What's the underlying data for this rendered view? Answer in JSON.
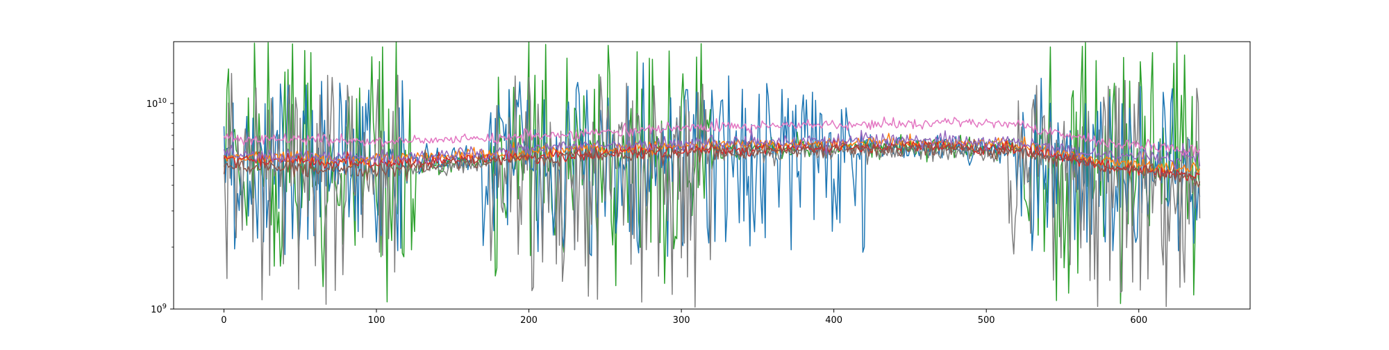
{
  "chart_data": {
    "type": "line",
    "title": "",
    "xlabel": "",
    "ylabel": "",
    "x_scale": "linear",
    "y_scale": "log",
    "xlim": [
      -33,
      673
    ],
    "ylim": [
      1000000000,
      20000000000
    ],
    "x_ticks": [
      0,
      100,
      200,
      300,
      400,
      500,
      600
    ],
    "y_ticks": [
      {
        "value": 1000000000,
        "base": "10",
        "exponent": "9"
      },
      {
        "value": 10000000000,
        "base": "10",
        "exponent": "10"
      }
    ],
    "grid": false,
    "legend": "none",
    "n_points": 641,
    "x_start": 0,
    "x_end": 640,
    "series": [
      {
        "color": "#2ca02c",
        "style": "noisy",
        "knots_x": [
          0,
          60,
          130,
          175,
          240,
          280,
          310,
          330,
          520,
          560,
          600,
          640
        ],
        "knots_y": [
          5000000000,
          5000000000,
          5000000000,
          5200000000,
          5600000000,
          5700000000,
          5900000000,
          6000000000,
          6200000000,
          5600000000,
          5000000000,
          4500000000
        ],
        "low_min": 1000000000,
        "low_max": 3500000000,
        "high_min": 10000000000,
        "high_max": 20000000000,
        "noisy_ranges": [
          [
            0,
            125
          ],
          [
            175,
            320
          ],
          [
            525,
            640
          ]
        ],
        "calm_sigma": 0.06
      },
      {
        "color": "#1f77b4",
        "style": "noisy",
        "knots_x": [
          0,
          130,
          175,
          250,
          330,
          400,
          520,
          600,
          640
        ],
        "knots_y": [
          5500000000,
          5300000000,
          5400000000,
          5600000000,
          6000000000,
          6200000000,
          6000000000,
          5000000000,
          4600000000
        ],
        "low_min": 1800000000,
        "low_max": 3200000000,
        "high_min": 8500000000,
        "high_max": 13000000000,
        "noisy_ranges": [
          [
            0,
            120
          ],
          [
            170,
            420
          ],
          [
            520,
            640
          ]
        ],
        "calm_sigma": 0.07
      },
      {
        "color": "#7f7f7f",
        "style": "noisy",
        "knots_x": [
          0,
          130,
          175,
          250,
          330,
          400,
          520,
          600,
          640
        ],
        "knots_y": [
          5000000000,
          4800000000,
          5000000000,
          5400000000,
          5700000000,
          5900000000,
          5800000000,
          4800000000,
          4400000000
        ],
        "low_min": 1000000000,
        "low_max": 3000000000,
        "high_min": 8000000000,
        "high_max": 14000000000,
        "noisy_ranges": [
          [
            0,
            115
          ],
          [
            175,
            320
          ],
          [
            515,
            640
          ]
        ],
        "calm_sigma": 0.05
      },
      {
        "color": "#ff7f0e",
        "style": "smooth",
        "knots_x": [
          0,
          100,
          200,
          300,
          400,
          460,
          520,
          580,
          640
        ],
        "knots_y": [
          5500000000,
          5300000000,
          5800000000,
          6200000000,
          6400000000,
          6500000000,
          6300000000,
          5200000000,
          4800000000
        ],
        "sigma": 0.035
      },
      {
        "color": "#d62728",
        "style": "smooth",
        "knots_x": [
          0,
          100,
          200,
          300,
          400,
          460,
          520,
          580,
          640
        ],
        "knots_y": [
          5400000000,
          5100000000,
          5500000000,
          5900000000,
          6100000000,
          6200000000,
          6000000000,
          5000000000,
          4400000000
        ],
        "sigma": 0.035
      },
      {
        "color": "#8c564b",
        "style": "smooth",
        "knots_x": [
          0,
          100,
          200,
          300,
          400,
          460,
          520,
          580,
          640
        ],
        "knots_y": [
          4900000000,
          4800000000,
          5400000000,
          5800000000,
          6000000000,
          6100000000,
          5900000000,
          4900000000,
          4300000000
        ],
        "sigma": 0.045
      },
      {
        "color": "#9467bd",
        "style": "smooth",
        "knots_x": [
          0,
          100,
          200,
          300,
          400,
          460,
          520,
          580,
          640
        ],
        "knots_y": [
          5600000000,
          5400000000,
          6000000000,
          6400000000,
          6600000000,
          6700000000,
          6400000000,
          5600000000,
          5400000000
        ],
        "sigma": 0.04
      },
      {
        "color": "#e377c2",
        "style": "smooth",
        "knots_x": [
          0,
          100,
          200,
          300,
          400,
          480,
          520,
          580,
          640
        ],
        "knots_y": [
          6800000000,
          6500000000,
          6900000000,
          7600000000,
          7900000000,
          8100000000,
          7900000000,
          6400000000,
          5900000000
        ],
        "sigma": 0.03
      }
    ]
  }
}
